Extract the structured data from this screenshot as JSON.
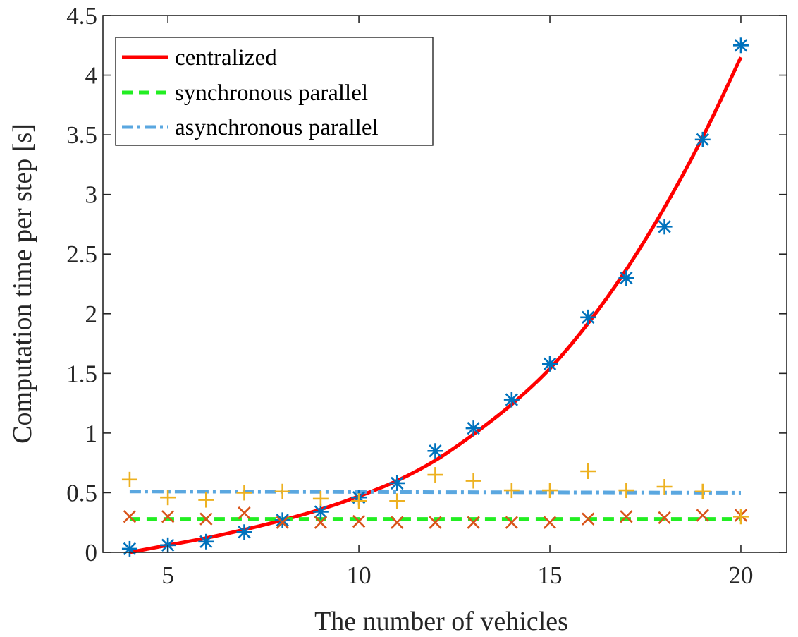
{
  "colors": {
    "centralized_fit": "#ff0000",
    "synchronous_fit": "#22ee22",
    "asynchronous_fit": "#5aa7e0",
    "centralized_markers": "#0072bd",
    "synchronous_markers": "#d95319",
    "asynchronous_markers": "#edb120",
    "axis": "#262626"
  },
  "chart_data": {
    "type": "line",
    "xlabel": "The number of vehicles",
    "ylabel": "Computation time per step [s]",
    "xlim": [
      3.3,
      21.2
    ],
    "ylim": [
      0,
      4.5
    ],
    "x_ticks": [
      5,
      10,
      15,
      20
    ],
    "y_ticks": [
      0,
      0.5,
      1,
      1.5,
      2,
      2.5,
      3,
      3.5,
      4,
      4.5
    ],
    "x_tick_labels": [
      "5",
      "10",
      "15",
      "20"
    ],
    "y_tick_labels": [
      "0",
      "0.5",
      "1",
      "1.5",
      "2",
      "2.5",
      "3",
      "3.5",
      "4",
      "4.5"
    ],
    "grid": false,
    "legend_position": "top-left",
    "legend": [
      {
        "label": "centralized",
        "style": "solid",
        "color": "#ff0000"
      },
      {
        "label": "synchronous parallel",
        "style": "dashed",
        "color": "#22ee22"
      },
      {
        "label": "asynchronous parallel",
        "style": "dashdot",
        "color": "#5aa7e0"
      }
    ],
    "fit_lines": [
      {
        "legend_label": "centralized",
        "style": "solid",
        "color": "#ff0000",
        "x": [
          4,
          5,
          6,
          7,
          8,
          9,
          10,
          11,
          12,
          13,
          14,
          15,
          16,
          17,
          18,
          19,
          20
        ],
        "y": [
          0.0,
          0.06,
          0.12,
          0.19,
          0.27,
          0.36,
          0.47,
          0.6,
          0.77,
          0.99,
          1.24,
          1.54,
          1.92,
          2.37,
          2.89,
          3.48,
          4.15
        ]
      },
      {
        "legend_label": "synchronous parallel",
        "style": "dashed",
        "color": "#22ee22",
        "x": [
          4,
          20
        ],
        "y": [
          0.28,
          0.28
        ]
      },
      {
        "legend_label": "asynchronous parallel",
        "style": "dashdot",
        "color": "#5aa7e0",
        "x": [
          4,
          20
        ],
        "y": [
          0.51,
          0.5
        ]
      }
    ],
    "scatter_series": [
      {
        "marker": "asterisk",
        "color": "#0072bd",
        "x": [
          4,
          5,
          6,
          7,
          8,
          9,
          10,
          11,
          12,
          13,
          14,
          15,
          16,
          17,
          18,
          19,
          20
        ],
        "y": [
          0.03,
          0.06,
          0.09,
          0.17,
          0.27,
          0.34,
          0.46,
          0.58,
          0.85,
          1.04,
          1.28,
          1.58,
          1.97,
          2.3,
          2.73,
          3.46,
          4.25
        ]
      },
      {
        "marker": "cross",
        "color": "#d95319",
        "x": [
          4,
          5,
          6,
          7,
          8,
          9,
          10,
          11,
          12,
          13,
          14,
          15,
          16,
          17,
          18,
          19,
          20
        ],
        "y": [
          0.3,
          0.3,
          0.28,
          0.33,
          0.25,
          0.25,
          0.26,
          0.25,
          0.25,
          0.25,
          0.25,
          0.25,
          0.28,
          0.3,
          0.29,
          0.31,
          0.31
        ]
      },
      {
        "marker": "plus",
        "color": "#edb120",
        "x": [
          4,
          5,
          6,
          7,
          8,
          9,
          10,
          11,
          12,
          13,
          14,
          15,
          16,
          17,
          18,
          19,
          20
        ],
        "y": [
          0.61,
          0.46,
          0.44,
          0.5,
          0.51,
          0.45,
          0.43,
          0.43,
          0.65,
          0.6,
          0.52,
          0.52,
          0.68,
          0.52,
          0.55,
          0.51,
          0.3
        ]
      }
    ]
  }
}
